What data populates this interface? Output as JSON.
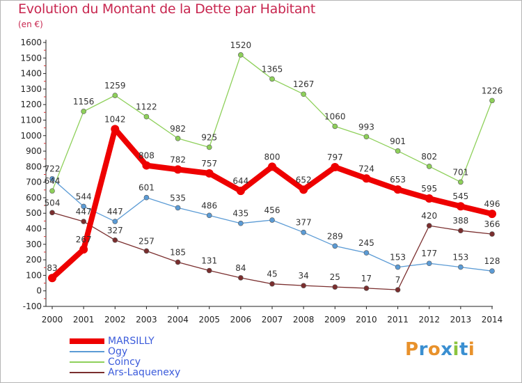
{
  "title": "Evolution du Montant de la Dette par Habitant",
  "subtitle": "(en €)",
  "logo": {
    "text": "Proxiti",
    "colors": [
      "#e8912b",
      "#3a8fd1",
      "#e8912b",
      "#3a8fd1",
      "#8bc43f",
      "#3a8fd1",
      "#e8912b"
    ]
  },
  "chart_data": {
    "type": "line",
    "title": "Evolution du Montant de la Dette par Habitant",
    "subtitle": "(en €)",
    "xlabel": "",
    "ylabel": "",
    "x": [
      2000,
      2001,
      2002,
      2003,
      2004,
      2005,
      2006,
      2007,
      2008,
      2009,
      2010,
      2011,
      2012,
      2013,
      2014
    ],
    "yticks": [
      -100,
      0,
      100,
      200,
      300,
      400,
      500,
      600,
      700,
      800,
      900,
      1000,
      1100,
      1200,
      1300,
      1400,
      1500,
      1600
    ],
    "ylim": [
      -100,
      1600
    ],
    "grid": false,
    "legend_position": "bottom-left",
    "series": [
      {
        "name": "MARSILLY",
        "color": "#ee0000",
        "emphasis": true,
        "values": [
          83,
          267,
          1042,
          808,
          782,
          757,
          644,
          800,
          652,
          797,
          724,
          653,
          595,
          545,
          496
        ],
        "labels": [
          "83",
          "267",
          "1042",
          "808",
          "782",
          "757",
          "644",
          "800",
          "652",
          "797",
          "724",
          "653",
          "595",
          "545",
          "496"
        ]
      },
      {
        "name": "Ogy",
        "color": "#5b9bd5",
        "emphasis": false,
        "values": [
          722,
          544,
          447,
          601,
          535,
          486,
          435,
          456,
          377,
          289,
          245,
          153,
          177,
          153,
          128
        ],
        "labels": [
          "722",
          "544",
          "447",
          "601",
          "535",
          "486",
          "435",
          "456",
          "377",
          "289",
          "245",
          "153",
          "177",
          "153",
          "128"
        ]
      },
      {
        "name": "Coincy",
        "color": "#8ed05a",
        "emphasis": false,
        "values": [
          644,
          1156,
          1259,
          1122,
          982,
          925,
          1520,
          1365,
          1267,
          1060,
          993,
          901,
          802,
          701,
          1226
        ],
        "labels": [
          "644",
          "1156",
          "1259",
          "1122",
          "982",
          "925",
          "1520",
          "1365",
          "1267",
          "1060",
          "993",
          "901",
          "802",
          "701",
          "1226"
        ]
      },
      {
        "name": "Ars-Laquenexy",
        "color": "#7a2e2e",
        "emphasis": false,
        "values": [
          504,
          447,
          327,
          257,
          185,
          131,
          84,
          45,
          34,
          25,
          17,
          7,
          420,
          388,
          366
        ],
        "labels": [
          "504",
          "447",
          "327",
          "257",
          "185",
          "131",
          "84",
          "45",
          "34",
          "25",
          "17",
          "7",
          "420",
          "388",
          "366"
        ]
      }
    ]
  }
}
